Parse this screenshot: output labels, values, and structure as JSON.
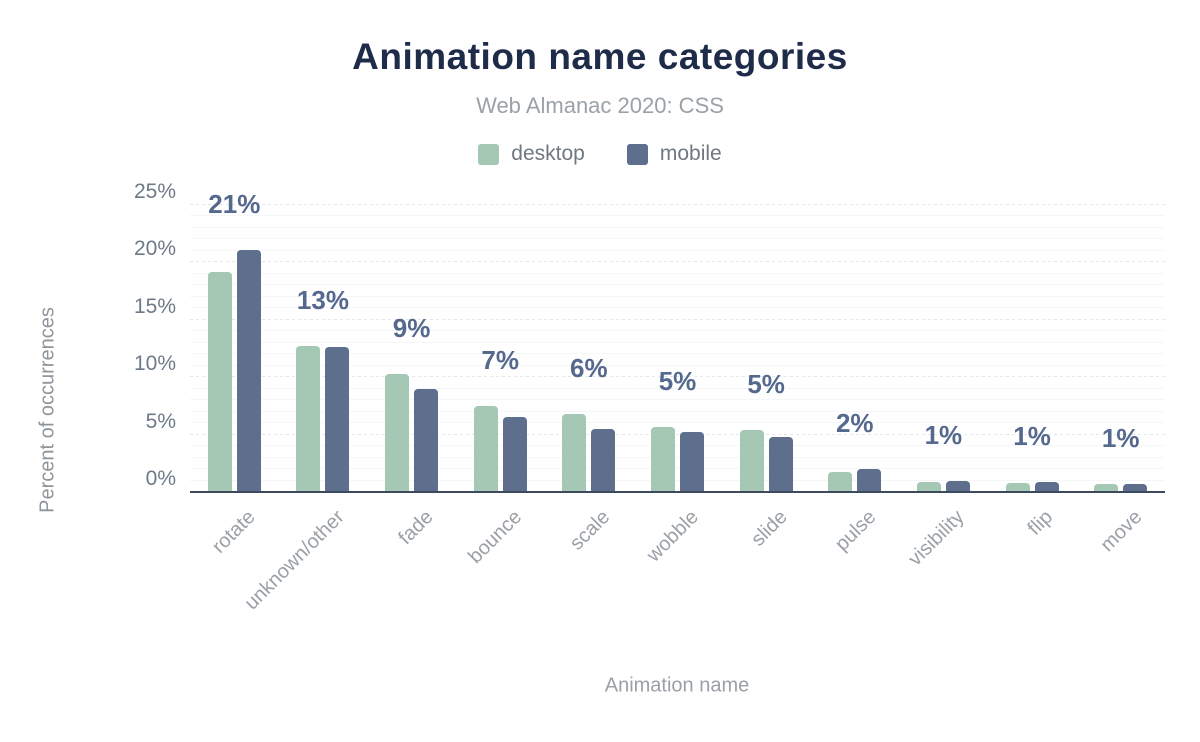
{
  "chart_data": {
    "type": "bar",
    "title": "Animation name categories",
    "subtitle": "Web Almanac 2020: CSS",
    "xlabel": "Animation name",
    "ylabel": "Percent of occurrences",
    "categories": [
      "rotate",
      "unknown/other",
      "fade",
      "bounce",
      "scale",
      "wobble",
      "slide",
      "pulse",
      "visibility",
      "flip",
      "move"
    ],
    "series": [
      {
        "name": "desktop",
        "color": "#a5c8b4",
        "values": [
          19.2,
          12.7,
          10.3,
          7.5,
          6.8,
          5.7,
          5.4,
          1.7,
          0.9,
          0.8,
          0.7
        ]
      },
      {
        "name": "mobile",
        "color": "#5d6f8d",
        "values": [
          21.1,
          12.6,
          9.0,
          6.5,
          5.5,
          5.2,
          4.8,
          2.0,
          1.0,
          0.9,
          0.7
        ]
      }
    ],
    "bar_labels": [
      "21%",
      "13%",
      "9%",
      "7%",
      "6%",
      "5%",
      "5%",
      "2%",
      "1%",
      "1%",
      "1%"
    ],
    "ylim": [
      0,
      25
    ],
    "yticks": [
      0,
      5,
      10,
      15,
      20,
      25
    ],
    "ytick_labels": [
      "0%",
      "5%",
      "10%",
      "15%",
      "20%",
      "25%"
    ],
    "grid": "horizontal-minor-1pct-major-5pct",
    "legend_position": "top-center"
  },
  "colors": {
    "title": "#1e2b49",
    "subtitle": "#9aa1a7",
    "value_label": "#55688e",
    "ytick_label": "#6e7a88",
    "category_label": "#9aa0a6",
    "axis_line": "#3d495d",
    "gridline_major": "#e3e6ea",
    "gridline_minor": "#f5f6f7",
    "background": "#ffffff"
  }
}
